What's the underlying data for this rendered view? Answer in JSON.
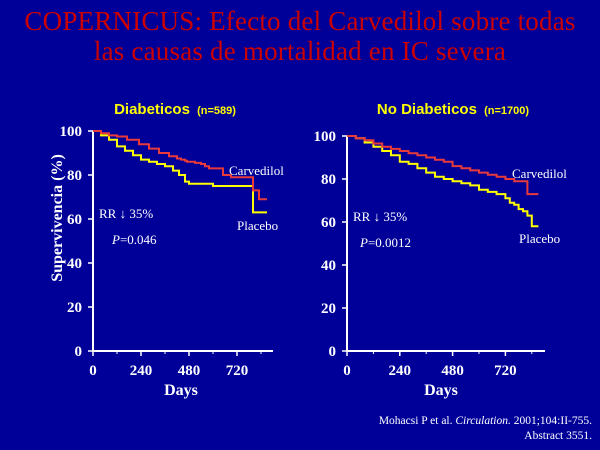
{
  "slide": {
    "title_line1": "COPERNICUS: Efecto del Carvedilol sobre todas",
    "title_line2": "las causas de mortalidad en IC severa",
    "reference_author": "Mohacsi P et al.",
    "reference_journal": "Circulation.",
    "reference_rest": "2001;104:II-755.",
    "reference_line2": "Abstract 3551.",
    "colors": {
      "background": "#000099",
      "title": "#cc0000",
      "panel_title": "#ffff00",
      "carvedilol": "#e83a3a",
      "placebo": "#ffff00",
      "text": "#ffffff"
    }
  },
  "chart_data": [
    {
      "type": "line",
      "title": "Diabeticos",
      "title_n": "(n=589)",
      "ylabel": "Supervivencia (%)",
      "xlabel": "Days",
      "xticks": [
        0,
        240,
        480,
        720
      ],
      "yticks": [
        0,
        20,
        40,
        60,
        80,
        100
      ],
      "xlim": [
        0,
        900
      ],
      "ylim": [
        0,
        100
      ],
      "annotations": {
        "rr": "RR ↓ 35%",
        "p_label": "P",
        "p_value": "=0.046"
      },
      "series": [
        {
          "name": "Carvedilol",
          "x": [
            0,
            40,
            80,
            120,
            170,
            230,
            280,
            330,
            380,
            420,
            440,
            460,
            470,
            480,
            510,
            540,
            560,
            580,
            610,
            650,
            690,
            740,
            760,
            780,
            800,
            830,
            870
          ],
          "y": [
            100,
            99,
            98,
            97.5,
            96,
            94,
            92,
            90,
            88.5,
            87.5,
            87,
            86.5,
            86,
            86,
            85.5,
            85,
            84,
            83,
            83,
            80,
            79,
            79,
            79,
            79,
            73,
            69,
            69
          ]
        },
        {
          "name": "Placebo",
          "x": [
            0,
            40,
            80,
            120,
            160,
            200,
            240,
            280,
            320,
            360,
            400,
            430,
            460,
            480,
            500,
            520,
            560,
            600,
            640,
            680,
            720,
            760,
            780,
            800,
            820,
            870
          ],
          "y": [
            100,
            98,
            96,
            93,
            91,
            89,
            87,
            86,
            85,
            84,
            82,
            80,
            77,
            76,
            76,
            76,
            76,
            75,
            75,
            75,
            75,
            75,
            75,
            63,
            63,
            63
          ]
        }
      ]
    },
    {
      "type": "line",
      "title": "No Diabeticos",
      "title_n": "(n=1700)",
      "ylabel": "",
      "xlabel": "Days",
      "xticks": [
        0,
        240,
        480,
        720
      ],
      "yticks": [
        0,
        20,
        40,
        60,
        80,
        100
      ],
      "xlim": [
        0,
        900
      ],
      "ylim": [
        0,
        100
      ],
      "annotations": {
        "rr": "RR ↓ 35%",
        "p_label": "P",
        "p_value": "=0.0012"
      },
      "series": [
        {
          "name": "Carvedilol",
          "x": [
            0,
            40,
            80,
            120,
            160,
            200,
            240,
            280,
            320,
            360,
            400,
            440,
            480,
            520,
            560,
            600,
            640,
            680,
            720,
            760,
            780,
            800,
            820,
            840,
            870
          ],
          "y": [
            100,
            99,
            98,
            96.5,
            95,
            94,
            93,
            92,
            91,
            90,
            89,
            88,
            86,
            85,
            84,
            83,
            82,
            81,
            80,
            79,
            79,
            79,
            73,
            73,
            73
          ]
        },
        {
          "name": "Placebo",
          "x": [
            0,
            40,
            80,
            120,
            160,
            200,
            240,
            280,
            320,
            360,
            400,
            440,
            480,
            520,
            560,
            600,
            640,
            680,
            720,
            740,
            760,
            780,
            800,
            820,
            840,
            870
          ],
          "y": [
            100,
            99,
            97,
            95,
            93,
            91,
            88,
            87,
            85,
            83,
            81,
            80,
            79,
            78,
            77,
            75,
            74,
            73,
            71,
            69,
            68,
            66,
            65,
            63,
            58,
            58
          ]
        }
      ]
    }
  ]
}
